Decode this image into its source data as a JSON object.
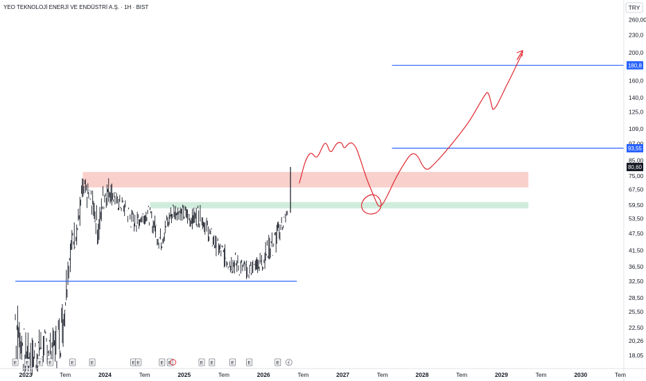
{
  "chart_data": {
    "type": "candlestick",
    "title": "YEO TEKNOLOJİ ENERJİ VE ENDÜSTRİ A.Ş. · 1H · BIST",
    "currency": "TRY",
    "scale": "log",
    "y_ticks": [
      {
        "v": 18.05,
        "label": "18,05"
      },
      {
        "v": 20.26,
        "label": "20,26"
      },
      {
        "v": 22.5,
        "label": "22,50"
      },
      {
        "v": 25.5,
        "label": "25,50"
      },
      {
        "v": 28.5,
        "label": "28,50"
      },
      {
        "v": 32.5,
        "label": "32,50"
      },
      {
        "v": 36.5,
        "label": "36,50"
      },
      {
        "v": 41.5,
        "label": "41,50"
      },
      {
        "v": 47.5,
        "label": "47,50"
      },
      {
        "v": 53.5,
        "label": "53,50"
      },
      {
        "v": 59.5,
        "label": "59,50"
      },
      {
        "v": 67.5,
        "label": "67,50"
      },
      {
        "v": 75,
        "label": "75,00"
      },
      {
        "v": 85,
        "label": "85,00"
      },
      {
        "v": 97,
        "label": "97,00"
      },
      {
        "v": 109,
        "label": "109,0"
      },
      {
        "v": 125,
        "label": "125,0"
      },
      {
        "v": 140,
        "label": "140,0"
      },
      {
        "v": 160,
        "label": "160,0"
      },
      {
        "v": 200,
        "label": "200,0"
      },
      {
        "v": 230,
        "label": "230,0"
      },
      {
        "v": 260,
        "label": "260,00"
      }
    ],
    "x_ticks": [
      {
        "t": 2023.0,
        "label": "2023",
        "year": true
      },
      {
        "t": 2023.5,
        "label": "Tem",
        "year": false
      },
      {
        "t": 2024.0,
        "label": "2024",
        "year": true
      },
      {
        "t": 2024.5,
        "label": "Tem",
        "year": false
      },
      {
        "t": 2025.0,
        "label": "2025",
        "year": true
      },
      {
        "t": 2025.5,
        "label": "Tem",
        "year": false
      },
      {
        "t": 2026.0,
        "label": "2026",
        "year": true
      },
      {
        "t": 2026.5,
        "label": "Tem",
        "year": false
      },
      {
        "t": 2027.0,
        "label": "2027",
        "year": true
      },
      {
        "t": 2027.5,
        "label": "Tem",
        "year": false
      },
      {
        "t": 2028.0,
        "label": "2028",
        "year": true
      },
      {
        "t": 2028.5,
        "label": "Tem",
        "year": false
      },
      {
        "t": 2029.0,
        "label": "2029",
        "year": true
      },
      {
        "t": 2029.5,
        "label": "Tem",
        "year": false
      },
      {
        "t": 2030.0,
        "label": "2030",
        "year": true
      },
      {
        "t": 2030.5,
        "label": "Tem",
        "year": false
      }
    ],
    "current_price": {
      "v": 80.6,
      "label": "80,60",
      "color": "#131722"
    },
    "horizontal_lines": [
      {
        "v": 32.5,
        "t_from": 2022.87,
        "t_to": 2026.42,
        "color": "#2962ff"
      },
      {
        "v": 93.55,
        "t_from": 2027.62,
        "t_to": 2030.9,
        "label": "93,55",
        "color": "#2962ff"
      },
      {
        "v": 180.8,
        "t_from": 2027.62,
        "t_to": 2030.9,
        "label": "180,8",
        "color": "#2962ff"
      }
    ],
    "zones": [
      {
        "name": "resistance",
        "v_low": 68.5,
        "v_high": 77.5,
        "t_from": 2023.72,
        "t_to": 2029.34,
        "color": "#f4a9a1"
      },
      {
        "name": "support",
        "v_low": 58.0,
        "v_high": 61.0,
        "t_from": 2024.57,
        "t_to": 2029.34,
        "color": "#a9dcbf"
      }
    ],
    "price_path": [
      [
        2022.87,
        15.5,
        32.5
      ],
      [
        2022.93,
        17.0,
        24.0
      ],
      [
        2023.0,
        14.5,
        22.0
      ],
      [
        2023.1,
        15.0,
        21.0
      ],
      [
        2023.2,
        16.0,
        23.0
      ],
      [
        2023.3,
        17.0,
        21.5
      ],
      [
        2023.4,
        16.0,
        24.0
      ],
      [
        2023.48,
        19.0,
        30.0
      ],
      [
        2023.53,
        30.0,
        42.0
      ],
      [
        2023.6,
        40.0,
        52.0
      ],
      [
        2023.66,
        44.0,
        58.0
      ],
      [
        2023.72,
        55.0,
        76.0
      ],
      [
        2023.8,
        58.0,
        70.0
      ],
      [
        2023.86,
        52.0,
        66.0
      ],
      [
        2023.92,
        40.0,
        56.0
      ],
      [
        2023.98,
        56.0,
        72.0
      ],
      [
        2024.06,
        60.0,
        76.0
      ],
      [
        2024.14,
        57.0,
        66.0
      ],
      [
        2024.22,
        55.0,
        64.0
      ],
      [
        2024.3,
        50.0,
        60.0
      ],
      [
        2024.38,
        47.0,
        56.0
      ],
      [
        2024.46,
        50.0,
        58.0
      ],
      [
        2024.54,
        52.0,
        60.0
      ],
      [
        2024.62,
        46.0,
        56.0
      ],
      [
        2024.7,
        40.0,
        50.0
      ],
      [
        2024.78,
        46.0,
        56.0
      ],
      [
        2024.86,
        52.0,
        62.0
      ],
      [
        2024.94,
        53.0,
        60.0
      ],
      [
        2025.02,
        50.0,
        60.0
      ],
      [
        2025.1,
        49.0,
        58.0
      ],
      [
        2025.18,
        50.0,
        61.0
      ],
      [
        2025.26,
        47.0,
        56.0
      ],
      [
        2025.34,
        42.0,
        50.0
      ],
      [
        2025.42,
        39.0,
        46.0
      ],
      [
        2025.5,
        36.0,
        44.0
      ],
      [
        2025.58,
        34.0,
        42.0
      ],
      [
        2025.66,
        34.0,
        41.0
      ],
      [
        2025.74,
        33.0,
        39.0
      ],
      [
        2025.82,
        33.0,
        38.0
      ],
      [
        2025.9,
        35.0,
        40.0
      ],
      [
        2025.98,
        34.0,
        42.0
      ],
      [
        2026.06,
        38.0,
        47.0
      ],
      [
        2026.14,
        38.0,
        50.0
      ],
      [
        2026.22,
        46.0,
        55.0
      ],
      [
        2026.3,
        53.0,
        58.0
      ],
      [
        2026.34,
        56.0,
        80.6
      ]
    ],
    "events": [
      {
        "t": 2022.87,
        "label": "E"
      },
      {
        "t": 2023.02,
        "label": "E"
      },
      {
        "t": 2023.18,
        "label": "E"
      },
      {
        "t": 2023.31,
        "label": "E"
      },
      {
        "t": 2023.59,
        "label": "E"
      },
      {
        "t": 2023.84,
        "label": "E"
      },
      {
        "t": 2024.36,
        "label": "E"
      },
      {
        "t": 2024.42,
        "label": "E"
      },
      {
        "t": 2024.72,
        "label": "E"
      },
      {
        "t": 2024.82,
        "label": "E"
      },
      {
        "t": 2025.22,
        "label": "E"
      },
      {
        "t": 2025.35,
        "label": "E"
      },
      {
        "t": 2025.61,
        "label": "E"
      },
      {
        "t": 2025.82,
        "label": "E"
      },
      {
        "t": 2026.18,
        "label": "E"
      }
    ],
    "grid": false,
    "legend": "none"
  }
}
